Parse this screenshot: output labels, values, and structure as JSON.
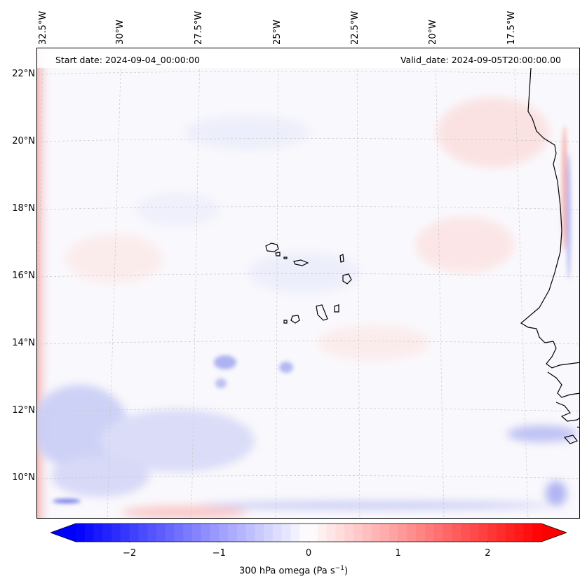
{
  "header": {
    "start_date": "Start date: 2024-09-04_00:00:00",
    "valid_date": "Valid_date: 2024-09-05T20:00:00.00"
  },
  "map": {
    "lat_labels": [
      "22°N",
      "20°N",
      "18°N",
      "16°N",
      "14°N",
      "12°N",
      "10°N"
    ],
    "lat_values": [
      22,
      20,
      18,
      16,
      14,
      12,
      10
    ],
    "lon_labels": [
      "32.5°W",
      "30°W",
      "27.5°W",
      "25°W",
      "22.5°W",
      "20°W",
      "17.5°W"
    ],
    "lon_values": [
      -32.5,
      -30,
      -27.5,
      -25,
      -22.5,
      -20,
      -17.5
    ],
    "features": [
      "coastline-west-africa",
      "cape-verde-islands"
    ]
  },
  "colorbar": {
    "label": "300 hPa omega (Pa s",
    "label_sup": "−1",
    "label_close": ")",
    "tick_labels": [
      "−2",
      "−1",
      "0",
      "1",
      "2"
    ],
    "tick_values": [
      -2,
      -1,
      0,
      1,
      2
    ],
    "range": [
      -2.6,
      2.6
    ],
    "colormap": "bwr",
    "color_min": "#0000ff",
    "color_mid": "#ffffff",
    "color_max": "#ff0000",
    "extend": "both"
  }
}
